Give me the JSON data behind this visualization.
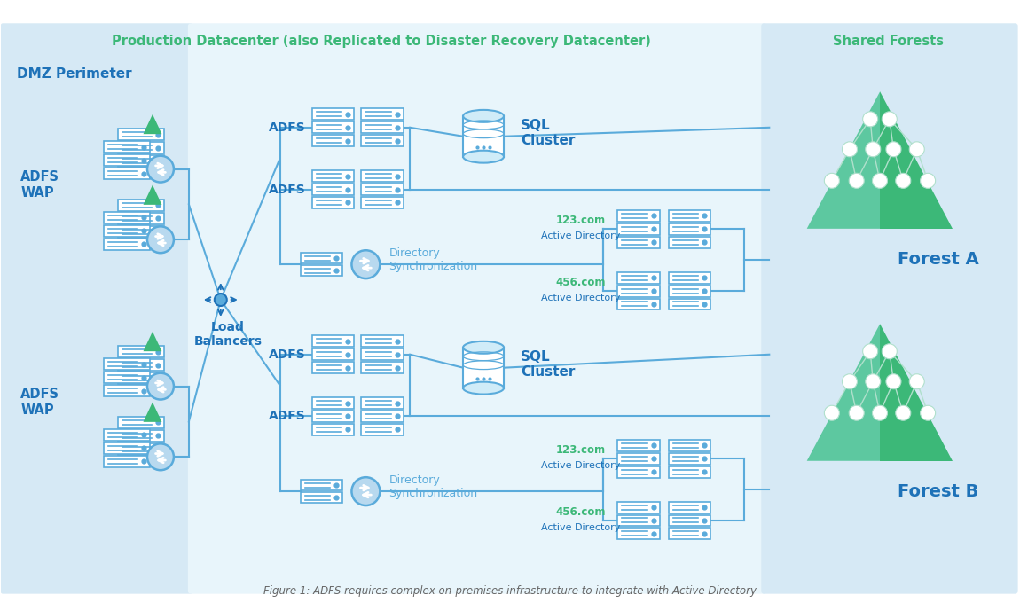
{
  "line_color": "#5aabdb",
  "line_color2": "#4da8d8",
  "server_stroke": "#5aabdb",
  "server_fill": "#ffffff",
  "green1": "#3cb878",
  "green2": "#5dc8a0",
  "blue_dark": "#1e72b8",
  "blue_med": "#2b8fd4",
  "blue_light": "#5aabdb",
  "dmz_bg": "#d4e8f5",
  "prod_bg": "#e8f4fb",
  "shared_bg": "#d4e8f5",
  "title_prod": "Production Datacenter (also Replicated to Disaster Recovery Datacenter)",
  "title_shared": "Shared Forests",
  "label_dmz": "DMZ Perimeter",
  "label_adfs_wap": "ADFS\nWAP",
  "label_lb": "Load\nBalancers",
  "label_sql": "SQL\nCluster",
  "label_dirsync": "Directory\nSynchronization",
  "label_forest_a": "Forest A",
  "label_forest_b": "Forest B",
  "label_adfs": "ADFS",
  "label_123": "123.com",
  "label_456": "456.com",
  "label_ad": "Active Directory",
  "caption": "Figure 1: ADFS requires complex on-premises infrastructure to integrate with Active Directory"
}
